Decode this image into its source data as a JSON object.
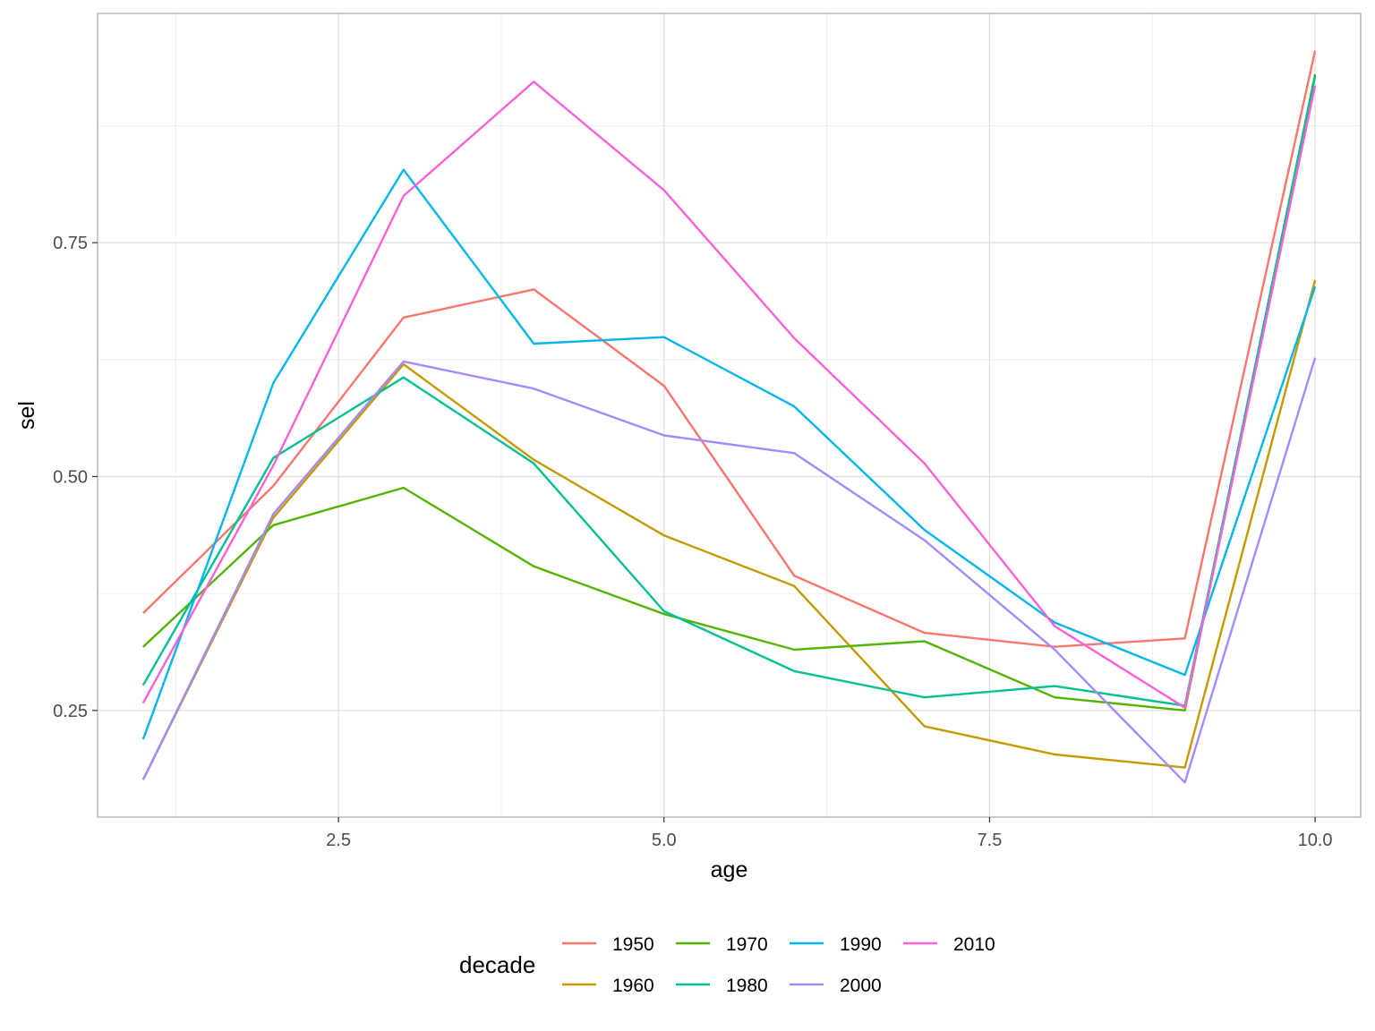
{
  "chart_data": {
    "type": "line",
    "xlabel": "age",
    "ylabel": "sel",
    "xlim": [
      0.65,
      10.35
    ],
    "ylim": [
      0.136,
      0.995
    ],
    "x_ticks": [
      2.5,
      5.0,
      7.5,
      10.0
    ],
    "x_tick_labels": [
      "2.5",
      "5.0",
      "7.5",
      "10.0"
    ],
    "y_ticks": [
      0.25,
      0.5,
      0.75
    ],
    "y_tick_labels": [
      "0.25",
      "0.50",
      "0.75"
    ],
    "grid": true,
    "legend": {
      "title": "decade",
      "position": "bottom"
    },
    "x": [
      1,
      2,
      3,
      4,
      5,
      6,
      7,
      8,
      9,
      10
    ],
    "series": [
      {
        "name": "1950",
        "color": "#F8766D",
        "values": [
          0.354,
          0.49,
          0.67,
          0.7,
          0.597,
          0.394,
          0.333,
          0.318,
          0.327,
          0.955
        ]
      },
      {
        "name": "1960",
        "color": "#C49A00",
        "values": [
          0.176,
          0.456,
          0.62,
          0.518,
          0.437,
          0.383,
          0.233,
          0.203,
          0.189,
          0.71
        ]
      },
      {
        "name": "1970",
        "color": "#53B400",
        "values": [
          0.318,
          0.448,
          0.488,
          0.404,
          0.353,
          0.315,
          0.324,
          0.264,
          0.25,
          0.93
        ]
      },
      {
        "name": "1980",
        "color": "#00C094",
        "values": [
          0.277,
          0.52,
          0.606,
          0.514,
          0.356,
          0.292,
          0.264,
          0.276,
          0.255,
          0.928
        ]
      },
      {
        "name": "1990",
        "color": "#00B6EB",
        "values": [
          0.219,
          0.6,
          0.828,
          0.642,
          0.649,
          0.575,
          0.443,
          0.344,
          0.288,
          0.703
        ]
      },
      {
        "name": "2000",
        "color": "#A58AFF",
        "values": [
          0.176,
          0.46,
          0.623,
          0.594,
          0.544,
          0.525,
          0.432,
          0.315,
          0.173,
          0.627
        ]
      },
      {
        "name": "2010",
        "color": "#FB61D7",
        "values": [
          0.258,
          0.512,
          0.8,
          0.922,
          0.806,
          0.648,
          0.514,
          0.34,
          0.253,
          0.918
        ]
      }
    ]
  }
}
